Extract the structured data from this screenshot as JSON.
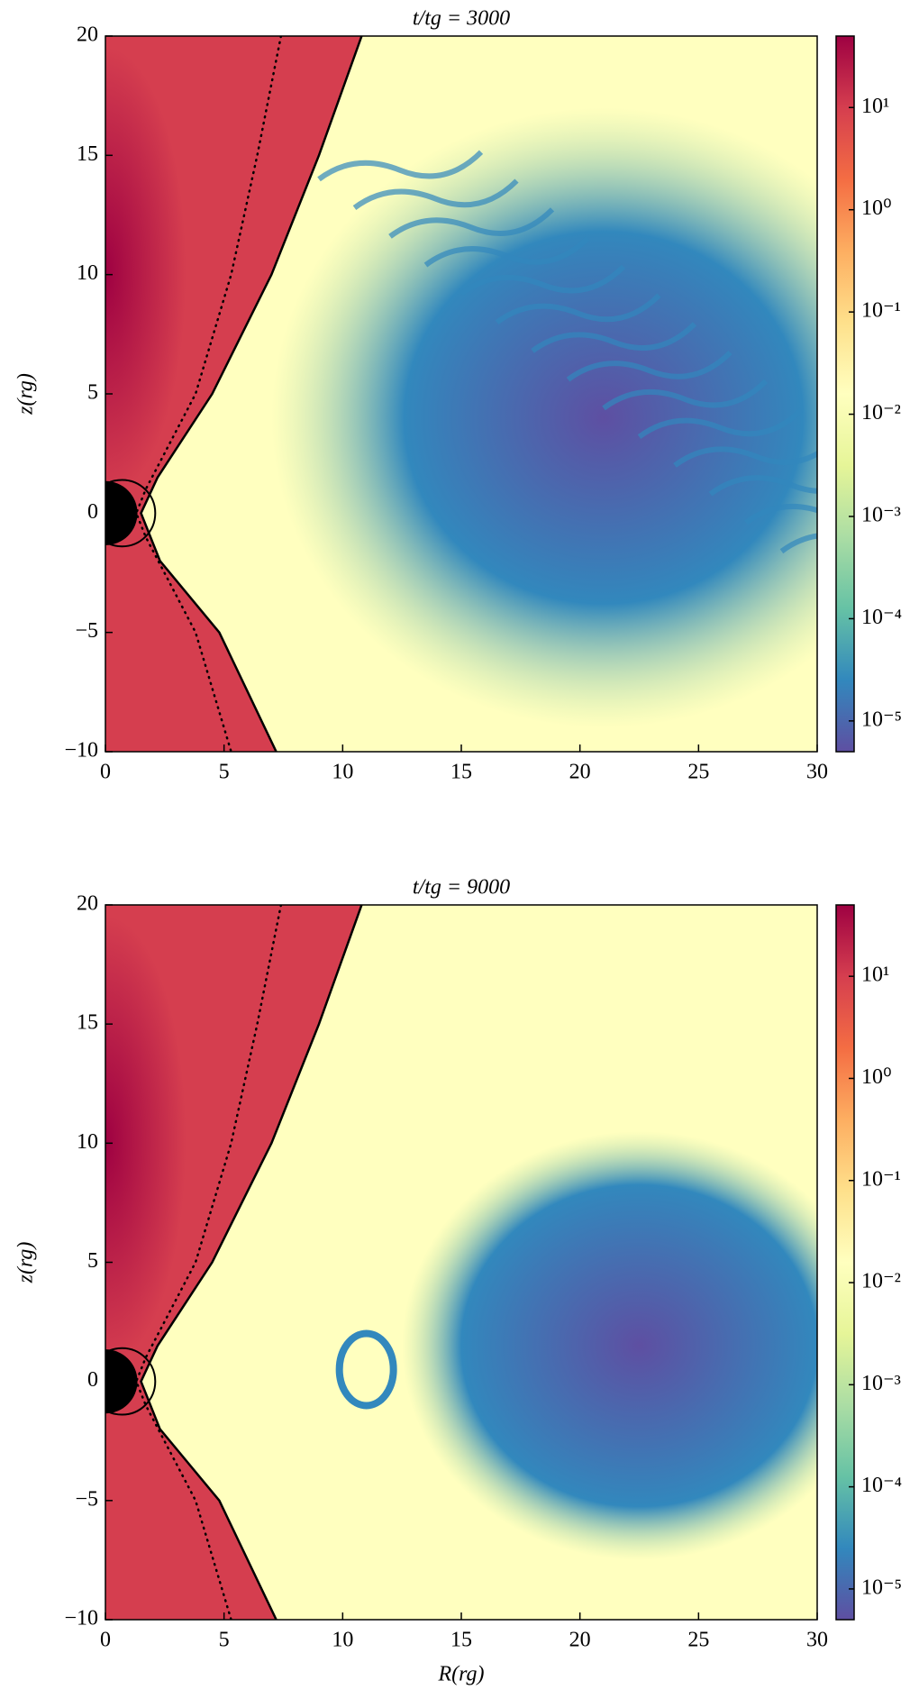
{
  "chart_data": [
    {
      "type": "heatmap",
      "title": "t/tg = 3000",
      "ylabel": "z(rg)",
      "xlim": [
        0,
        30
      ],
      "ylim": [
        -10,
        20
      ],
      "xticks": [
        0,
        5,
        10,
        15,
        20,
        25,
        30
      ],
      "yticks": [
        {
          "value": -10,
          "label": "−10"
        },
        {
          "value": -5,
          "label": "−5"
        },
        0,
        5,
        10,
        15,
        20
      ],
      "colormap": "Spectral_r",
      "colorbar": {
        "scale": "log",
        "clim": [
          5e-06,
          50
        ],
        "ticks": [
          {
            "value": 10,
            "label": "10¹"
          },
          {
            "value": 1,
            "label": "10⁰"
          },
          {
            "value": 0.1,
            "label": "10⁻¹"
          },
          {
            "value": 0.01,
            "label": "10⁻²"
          },
          {
            "value": 0.001,
            "label": "10⁻³"
          },
          {
            "value": 0.0001,
            "label": "10⁻⁴"
          },
          {
            "value": 1e-05,
            "label": "10⁻⁵"
          }
        ]
      }
    },
    {
      "type": "heatmap",
      "title": "t/tg = 9000",
      "ylabel": "z(rg)",
      "xlabel": "R(rg)",
      "xlim": [
        0,
        30
      ],
      "ylim": [
        -10,
        20
      ],
      "xticks": [
        0,
        5,
        10,
        15,
        20,
        25,
        30
      ],
      "yticks": [
        {
          "value": -10,
          "label": "−10"
        },
        {
          "value": -5,
          "label": "−5"
        },
        0,
        5,
        10,
        15,
        20
      ],
      "colormap": "Spectral_r",
      "colorbar": {
        "scale": "log",
        "clim": [
          5e-06,
          50
        ],
        "ticks": [
          {
            "value": 10,
            "label": "10¹"
          },
          {
            "value": 1,
            "label": "10⁰"
          },
          {
            "value": 0.1,
            "label": "10⁻¹"
          },
          {
            "value": 0.01,
            "label": "10⁻²"
          },
          {
            "value": 0.001,
            "label": "10⁻³"
          },
          {
            "value": 0.0001,
            "label": "10⁻⁴"
          },
          {
            "value": 1e-05,
            "label": "10⁻⁵"
          }
        ]
      }
    }
  ]
}
